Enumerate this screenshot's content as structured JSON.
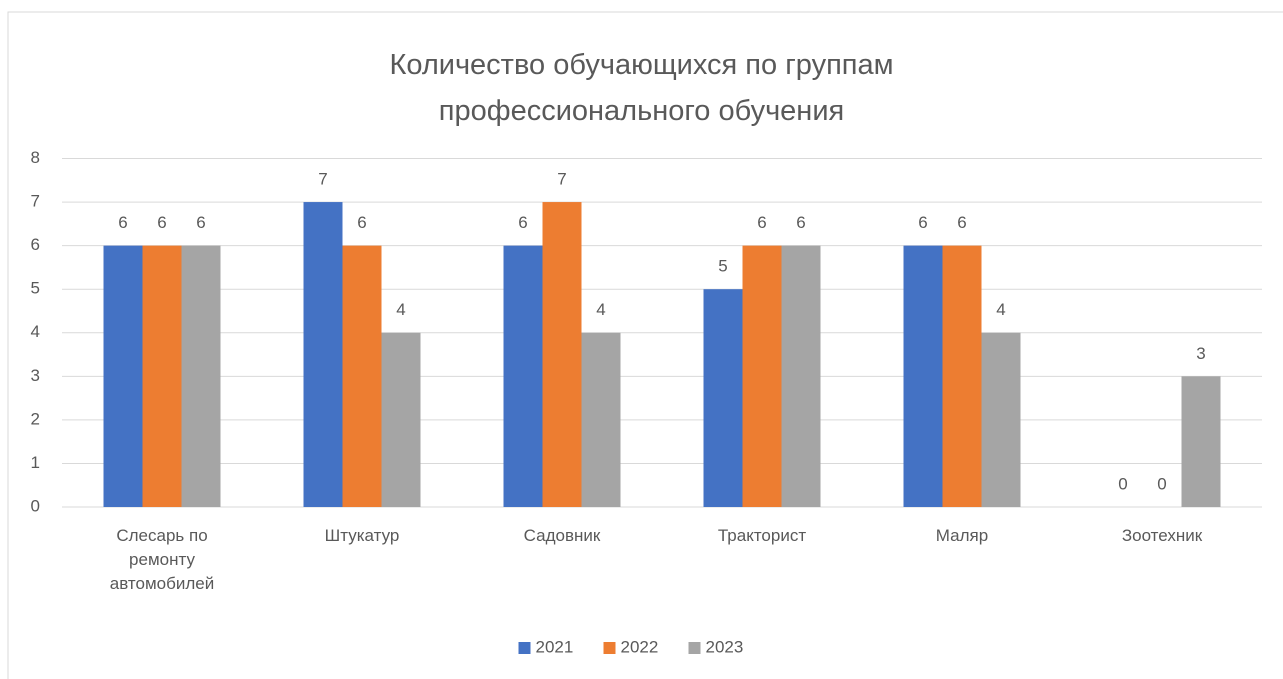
{
  "chart_data": {
    "type": "bar",
    "title": "Количество обучающихся по группам профессионального обучения",
    "categories": [
      "Слесарь по ремонту автомобилей",
      "Штукатур",
      "Садовник",
      "Тракторист",
      "Маляр",
      "Зоотехник"
    ],
    "series": [
      {
        "name": "2021",
        "color": "#4472c4",
        "values": [
          6,
          7,
          6,
          5,
          6,
          0
        ]
      },
      {
        "name": "2022",
        "color": "#ed7d31",
        "values": [
          6,
          6,
          7,
          6,
          6,
          0
        ]
      },
      {
        "name": "2023",
        "color": "#a5a5a5",
        "values": [
          6,
          4,
          4,
          6,
          4,
          3
        ]
      }
    ],
    "ylim": [
      0,
      8
    ],
    "yticks": [
      0,
      1,
      2,
      3,
      4,
      5,
      6,
      7,
      8
    ],
    "grid": true,
    "legend": "bottom"
  }
}
